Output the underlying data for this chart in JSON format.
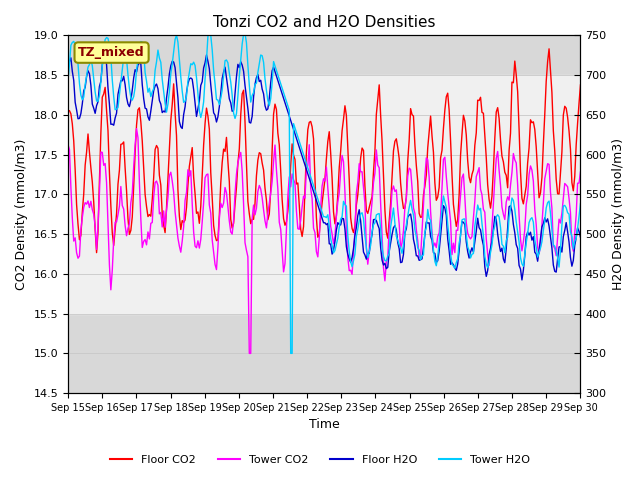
{
  "title": "Tonzi CO2 and H2O Densities",
  "xlabel": "Time",
  "ylabel_left": "CO2 Density (mmol/m3)",
  "ylabel_right": "H2O Density (mmol/m3)",
  "ylim_left": [
    14.5,
    19.0
  ],
  "ylim_right": [
    300,
    750
  ],
  "yticks_left": [
    14.5,
    15.0,
    15.5,
    16.0,
    16.5,
    17.0,
    17.5,
    18.0,
    18.5,
    19.0
  ],
  "yticks_right": [
    300,
    350,
    400,
    450,
    500,
    550,
    600,
    650,
    700,
    750
  ],
  "xtick_labels": [
    "Sep 15",
    "Sep 16",
    "Sep 17",
    "Sep 18",
    "Sep 19",
    "Sep 20",
    "Sep 21",
    "Sep 22",
    "Sep 23",
    "Sep 24",
    "Sep 25",
    "Sep 26",
    "Sep 27",
    "Sep 28",
    "Sep 29",
    "Sep 30"
  ],
  "annotation_text": "TZ_mixed",
  "annotation_color": "#8B0000",
  "annotation_bg": "#FFFF99",
  "annotation_border": "#8B8B00",
  "colors": {
    "floor_co2": "#FF0000",
    "tower_co2": "#FF00FF",
    "floor_h2o": "#0000CC",
    "tower_h2o": "#00CCFF"
  },
  "legend_labels": [
    "Floor CO2",
    "Tower CO2",
    "Floor H2O",
    "Tower H2O"
  ],
  "grid_color": "#C8C8C8",
  "plot_bg_color": "#D8D8D8",
  "band_color": "#F0F0F0",
  "band_range": [
    15.5,
    18.5
  ]
}
